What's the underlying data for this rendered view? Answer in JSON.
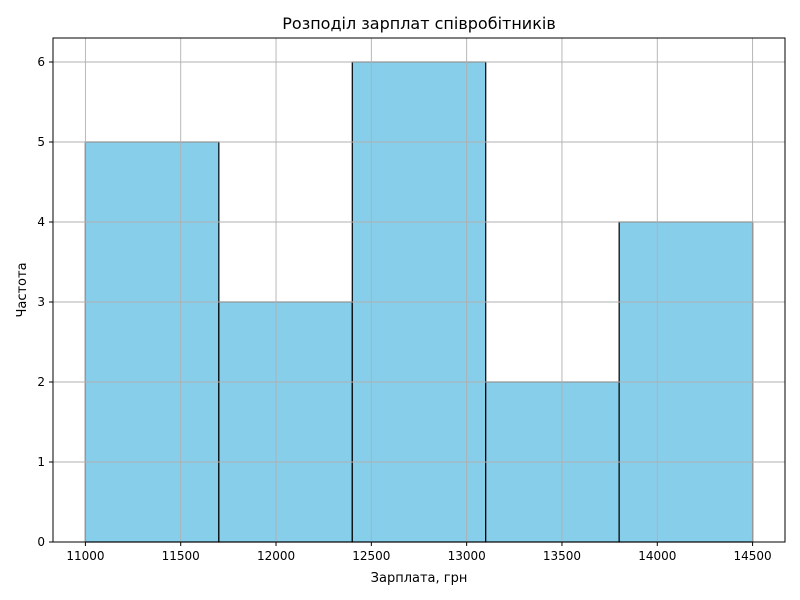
{
  "chart_data": {
    "type": "bar",
    "title": "Розподіл зарплат співробітників",
    "xlabel": "Зарплата, грн",
    "ylabel": "Частота",
    "bins": [
      {
        "start": 11000,
        "end": 11700,
        "count": 5
      },
      {
        "start": 11700,
        "end": 12400,
        "count": 3
      },
      {
        "start": 12400,
        "end": 13100,
        "count": 6
      },
      {
        "start": 13100,
        "end": 13800,
        "count": 2
      },
      {
        "start": 13800,
        "end": 14500,
        "count": 4
      }
    ],
    "xlim": [
      10830,
      14670
    ],
    "ylim": [
      0,
      6.3
    ],
    "xticks": [
      11000,
      11500,
      12000,
      12500,
      13000,
      13500,
      14000,
      14500
    ],
    "yticks": [
      0,
      1,
      2,
      3,
      4,
      5,
      6
    ],
    "grid": true,
    "colors": {
      "bar_fill": "#87ceeb",
      "bar_edge": "#000000",
      "grid": "#b0b0b0",
      "axis": "#000000"
    }
  }
}
